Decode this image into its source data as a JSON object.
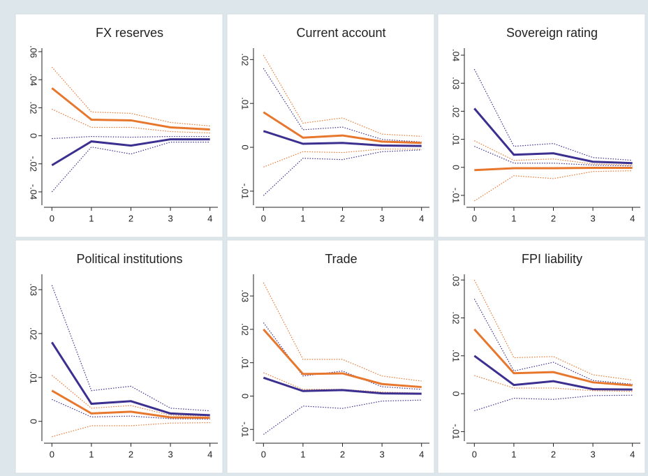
{
  "chart_data": [
    {
      "type": "line",
      "title": "FX reserves",
      "x": [
        0,
        1,
        2,
        3,
        4
      ],
      "xlim": [
        -0.2,
        4.2
      ],
      "xticks": [
        0,
        1,
        2,
        3,
        4
      ],
      "ylim": [
        -0.0495,
        0.0625
      ],
      "yticks": [
        {
          "value": -0.04,
          "label": "-.04"
        },
        {
          "value": -0.02,
          "label": "-.02"
        },
        {
          "value": 0,
          "label": "0"
        },
        {
          "value": 0.02,
          "label": ".02"
        },
        {
          "value": 0.04,
          "label": ".04"
        },
        {
          "value": 0.06,
          "label": ".06"
        }
      ],
      "series": [
        {
          "color": "#e8772e",
          "dash": "dotted",
          "values": [
            0.049,
            0.017,
            0.016,
            0.0095,
            0.007
          ]
        },
        {
          "color": "#e8772e",
          "dash": "dotted",
          "values": [
            0.019,
            0.006,
            0.006,
            0.003,
            0.002
          ]
        },
        {
          "color": "#3b2f8f",
          "dash": "dotted",
          "values": [
            -0.002,
            -0.0005,
            -0.001,
            -0.0005,
            -0.0005
          ]
        },
        {
          "color": "#3b2f8f",
          "dash": "dotted",
          "values": [
            -0.04,
            -0.008,
            -0.013,
            -0.0045,
            -0.0045
          ]
        },
        {
          "color": "#e8772e",
          "dash": "solid",
          "values": [
            0.034,
            0.0115,
            0.011,
            0.006,
            0.0045
          ]
        },
        {
          "color": "#3b2f8f",
          "dash": "solid",
          "values": [
            -0.021,
            -0.004,
            -0.007,
            -0.0025,
            -0.0025
          ]
        }
      ]
    },
    {
      "type": "line",
      "title": "Current account",
      "x": [
        0,
        1,
        2,
        3,
        4
      ],
      "xlim": [
        -0.2,
        4.2
      ],
      "xticks": [
        0,
        1,
        2,
        3,
        4
      ],
      "ylim": [
        -0.0132,
        0.0226
      ],
      "yticks": [
        {
          "value": -0.01,
          "label": "-.01"
        },
        {
          "value": 0,
          "label": "0"
        },
        {
          "value": 0.01,
          "label": ".01"
        },
        {
          "value": 0.02,
          "label": ".02"
        }
      ],
      "series": [
        {
          "color": "#e8772e",
          "dash": "dotted",
          "values": [
            0.021,
            0.0055,
            0.0067,
            0.003,
            0.0025
          ]
        },
        {
          "color": "#e8772e",
          "dash": "dotted",
          "values": [
            -0.0045,
            -0.001,
            -0.0012,
            -0.0004,
            -0.0004
          ]
        },
        {
          "color": "#3b2f8f",
          "dash": "dotted",
          "values": [
            0.018,
            0.004,
            0.0046,
            0.0018,
            0.0012
          ]
        },
        {
          "color": "#3b2f8f",
          "dash": "dotted",
          "values": [
            -0.011,
            -0.0025,
            -0.0028,
            -0.001,
            -0.0006
          ]
        },
        {
          "color": "#e8772e",
          "dash": "solid",
          "values": [
            0.008,
            0.0022,
            0.0027,
            0.0013,
            0.001
          ]
        },
        {
          "color": "#3b2f8f",
          "dash": "solid",
          "values": [
            0.0037,
            0.0008,
            0.001,
            0.0004,
            0.0003
          ]
        }
      ]
    },
    {
      "type": "line",
      "title": "Sovereign rating",
      "x": [
        0,
        1,
        2,
        3,
        4
      ],
      "xlim": [
        -0.2,
        4.2
      ],
      "xticks": [
        0,
        1,
        2,
        3,
        4
      ],
      "ylim": [
        -0.0135,
        0.0425
      ],
      "yticks": [
        {
          "value": -0.01,
          "label": "-.01"
        },
        {
          "value": 0,
          "label": "0"
        },
        {
          "value": 0.01,
          "label": ".01"
        },
        {
          "value": 0.02,
          "label": ".02"
        },
        {
          "value": 0.03,
          "label": ".03"
        },
        {
          "value": 0.04,
          "label": ".04"
        }
      ],
      "series": [
        {
          "color": "#3b2f8f",
          "dash": "dotted",
          "values": [
            0.035,
            0.0075,
            0.0085,
            0.0035,
            0.0025
          ]
        },
        {
          "color": "#3b2f8f",
          "dash": "dotted",
          "values": [
            0.0075,
            0.0015,
            0.0015,
            0.0008,
            0.0005
          ]
        },
        {
          "color": "#e8772e",
          "dash": "dotted",
          "values": [
            0.0095,
            0.0025,
            0.003,
            0.0012,
            0.0008
          ]
        },
        {
          "color": "#e8772e",
          "dash": "dotted",
          "values": [
            -0.012,
            -0.003,
            -0.004,
            -0.0015,
            -0.0012
          ]
        },
        {
          "color": "#e8772e",
          "dash": "solid",
          "values": [
            -0.001,
            -0.0003,
            -0.0003,
            -0.0002,
            -0.0002
          ]
        },
        {
          "color": "#3b2f8f",
          "dash": "solid",
          "values": [
            0.021,
            0.0045,
            0.005,
            0.002,
            0.0015
          ]
        }
      ]
    },
    {
      "type": "line",
      "title": "Political institutions",
      "x": [
        0,
        1,
        2,
        3,
        4
      ],
      "xlim": [
        -0.2,
        4.2
      ],
      "xticks": [
        0,
        1,
        2,
        3,
        4
      ],
      "ylim": [
        -0.0045,
        0.0335
      ],
      "yticks": [
        {
          "value": 0,
          "label": "0"
        },
        {
          "value": 0.01,
          "label": ".01"
        },
        {
          "value": 0.02,
          "label": ".02"
        },
        {
          "value": 0.03,
          "label": ".03"
        }
      ],
      "series": [
        {
          "color": "#3b2f8f",
          "dash": "dotted",
          "values": [
            0.031,
            0.007,
            0.008,
            0.003,
            0.0024
          ]
        },
        {
          "color": "#3b2f8f",
          "dash": "dotted",
          "values": [
            0.005,
            0.001,
            0.0012,
            0.0006,
            0.0005
          ]
        },
        {
          "color": "#e8772e",
          "dash": "dotted",
          "values": [
            0.0105,
            0.003,
            0.0036,
            0.0014,
            0.0012
          ]
        },
        {
          "color": "#e8772e",
          "dash": "dotted",
          "values": [
            -0.0035,
            -0.001,
            -0.001,
            -0.0004,
            -0.0003
          ]
        },
        {
          "color": "#e8772e",
          "dash": "solid",
          "values": [
            0.007,
            0.0018,
            0.0022,
            0.0009,
            0.0008
          ]
        },
        {
          "color": "#3b2f8f",
          "dash": "solid",
          "values": [
            0.018,
            0.004,
            0.0046,
            0.0018,
            0.0014
          ]
        }
      ]
    },
    {
      "type": "line",
      "title": "Trade",
      "x": [
        0,
        1,
        2,
        3,
        4
      ],
      "xlim": [
        -0.2,
        4.2
      ],
      "xticks": [
        0,
        1,
        2,
        3,
        4
      ],
      "ylim": [
        -0.0135,
        0.0365
      ],
      "yticks": [
        {
          "value": -0.01,
          "label": "-.01"
        },
        {
          "value": 0,
          "label": "0"
        },
        {
          "value": 0.01,
          "label": ".01"
        },
        {
          "value": 0.02,
          "label": ".02"
        },
        {
          "value": 0.03,
          "label": ".03"
        }
      ],
      "series": [
        {
          "color": "#e8772e",
          "dash": "dotted",
          "values": [
            0.034,
            0.011,
            0.011,
            0.006,
            0.0045
          ]
        },
        {
          "color": "#e8772e",
          "dash": "dotted",
          "values": [
            0.007,
            0.002,
            0.002,
            0.0012,
            0.0009
          ]
        },
        {
          "color": "#3b2f8f",
          "dash": "dotted",
          "values": [
            0.022,
            0.006,
            0.0075,
            0.0028,
            0.002
          ]
        },
        {
          "color": "#3b2f8f",
          "dash": "dotted",
          "values": [
            -0.0115,
            -0.003,
            -0.0037,
            -0.0015,
            -0.0012
          ]
        },
        {
          "color": "#e8772e",
          "dash": "solid",
          "values": [
            0.02,
            0.0066,
            0.0068,
            0.0036,
            0.0027
          ]
        },
        {
          "color": "#3b2f8f",
          "dash": "solid",
          "values": [
            0.0055,
            0.0015,
            0.0018,
            0.0008,
            0.0007
          ]
        }
      ]
    },
    {
      "type": "line",
      "title": "FPI liability",
      "x": [
        0,
        1,
        2,
        3,
        4
      ],
      "xlim": [
        -0.2,
        4.2
      ],
      "xticks": [
        0,
        1,
        2,
        3,
        4
      ],
      "ylim": [
        -0.0125,
        0.0315
      ],
      "yticks": [
        {
          "value": -0.01,
          "label": "-.01"
        },
        {
          "value": 0,
          "label": "0"
        },
        {
          "value": 0.01,
          "label": ".01"
        },
        {
          "value": 0.02,
          "label": ".02"
        },
        {
          "value": 0.03,
          "label": ".03"
        }
      ],
      "series": [
        {
          "color": "#e8772e",
          "dash": "dotted",
          "values": [
            0.03,
            0.0095,
            0.0098,
            0.005,
            0.0036
          ]
        },
        {
          "color": "#e8772e",
          "dash": "dotted",
          "values": [
            0.0048,
            0.0015,
            0.0015,
            0.0008,
            0.0006
          ]
        },
        {
          "color": "#3b2f8f",
          "dash": "dotted",
          "values": [
            0.025,
            0.006,
            0.0083,
            0.0035,
            0.0025
          ]
        },
        {
          "color": "#3b2f8f",
          "dash": "dotted",
          "values": [
            -0.0045,
            -0.0012,
            -0.0015,
            -0.0005,
            -0.0004
          ]
        },
        {
          "color": "#e8772e",
          "dash": "solid",
          "values": [
            0.017,
            0.0054,
            0.0057,
            0.003,
            0.0022
          ]
        },
        {
          "color": "#3b2f8f",
          "dash": "solid",
          "values": [
            0.01,
            0.0023,
            0.0033,
            0.0012,
            0.0011
          ]
        }
      ]
    }
  ]
}
